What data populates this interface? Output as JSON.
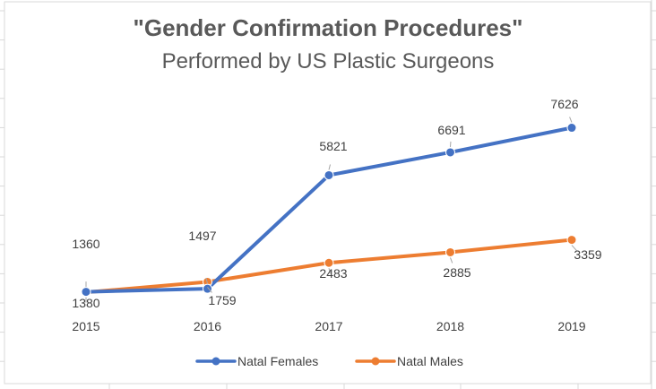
{
  "chart_data": {
    "type": "line",
    "title": "\"Gender Confirmation Procedures\"",
    "subtitle": "Performed by US Plastic Surgeons",
    "categories": [
      "2015",
      "2016",
      "2017",
      "2018",
      "2019"
    ],
    "series": [
      {
        "name": "Natal Females",
        "color": "#4472C4",
        "values": [
          1380,
          1497,
          5821,
          6691,
          7626
        ]
      },
      {
        "name": "Natal Males",
        "color": "#ED7D31",
        "values": [
          1360,
          1759,
          2483,
          2885,
          3359
        ]
      }
    ],
    "data_labels": [
      [
        "1380",
        "1497",
        "5821",
        "6691",
        "7626"
      ],
      [
        "1360",
        "1759",
        "2483",
        "2885",
        "3359"
      ]
    ],
    "ylim": [
      0,
      9000
    ],
    "grid": false,
    "legend_position": "bottom",
    "xlabel": "",
    "ylabel": ""
  }
}
